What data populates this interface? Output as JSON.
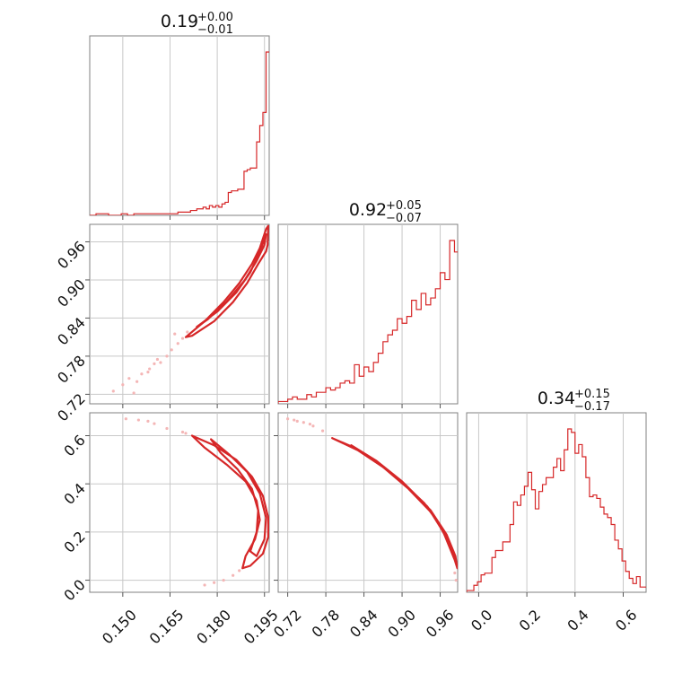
{
  "figure": {
    "type": "corner",
    "color": "#d62728",
    "scatter_color": "#f4b6b6",
    "grid": true
  },
  "titles": [
    {
      "value": "0.19",
      "plus": "+0.00",
      "minus": "−0.01"
    },
    {
      "value": "0.92",
      "plus": "+0.05",
      "minus": "−0.07"
    },
    {
      "value": "0.34",
      "plus": "+0.15",
      "minus": "−0.17"
    }
  ],
  "chart_data": {
    "type": "corner",
    "parameters": [
      {
        "index": 0,
        "range": [
          0.1395,
          0.1965
        ],
        "ticks": [
          0.15,
          0.165,
          0.18,
          0.195
        ],
        "tick_labels": [
          "0.150",
          "0.165",
          "0.180",
          "0.195"
        ],
        "histogram": {
          "edges": [
            0.1395,
            0.1415,
            0.1435,
            0.1455,
            0.1475,
            0.1495,
            0.1515,
            0.1535,
            0.1555,
            0.1575,
            0.1595,
            0.1615,
            0.1635,
            0.1655,
            0.1675,
            0.1695,
            0.1715,
            0.1735,
            0.1755,
            0.1765,
            0.1775,
            0.1785,
            0.1795,
            0.1805,
            0.1815,
            0.1825,
            0.1835,
            0.1845,
            0.1855,
            0.1865,
            0.1875,
            0.1885,
            0.1895,
            0.1905,
            0.1915,
            0.1925,
            0.1935,
            0.1945,
            0.1955,
            0.1965
          ],
          "counts": [
            0,
            1,
            1,
            0,
            0,
            1,
            0,
            1,
            1,
            1,
            1,
            1,
            1,
            1,
            2,
            2,
            3,
            4,
            5,
            4,
            6,
            5,
            6,
            5,
            7,
            8,
            14,
            15,
            15,
            16,
            16,
            27,
            28,
            29,
            29,
            45,
            55,
            63,
            100
          ]
        }
      },
      {
        "index": 1,
        "range": [
          0.705,
          0.9875
        ],
        "ticks": [
          0.72,
          0.78,
          0.84,
          0.9,
          0.96
        ],
        "tick_labels": [
          "0.72",
          "0.78",
          "0.84",
          "0.90",
          "0.96"
        ],
        "histogram": {
          "edges": [
            0.705,
            0.7125,
            0.72,
            0.7275,
            0.735,
            0.7425,
            0.75,
            0.7575,
            0.765,
            0.7725,
            0.78,
            0.7875,
            0.795,
            0.8025,
            0.81,
            0.8175,
            0.825,
            0.8325,
            0.84,
            0.8475,
            0.855,
            0.8625,
            0.87,
            0.8775,
            0.885,
            0.8925,
            0.9,
            0.9075,
            0.915,
            0.9225,
            0.93,
            0.9375,
            0.945,
            0.9525,
            0.96,
            0.9675,
            0.975,
            0.9825,
            0.9875
          ],
          "counts": [
            1,
            1,
            2,
            3,
            2,
            2,
            4,
            3,
            5,
            5,
            7,
            6,
            7,
            9,
            10,
            9,
            17,
            12,
            16,
            14,
            18,
            22,
            27,
            30,
            32,
            37,
            35,
            38,
            45,
            41,
            48,
            43,
            46,
            50,
            57,
            54,
            71,
            66
          ]
        }
      },
      {
        "index": 2,
        "range": [
          -0.05,
          0.695
        ],
        "ticks": [
          0.0,
          0.2,
          0.4,
          0.6
        ],
        "tick_labels": [
          "0.0",
          "0.2",
          "0.4",
          "0.6"
        ],
        "histogram": {
          "edges": [
            -0.05,
            -0.035,
            -0.02,
            -0.005,
            0.01,
            0.025,
            0.04,
            0.055,
            0.07,
            0.085,
            0.1,
            0.115,
            0.13,
            0.145,
            0.16,
            0.175,
            0.19,
            0.205,
            0.22,
            0.235,
            0.25,
            0.265,
            0.28,
            0.295,
            0.31,
            0.325,
            0.34,
            0.355,
            0.37,
            0.385,
            0.4,
            0.415,
            0.43,
            0.445,
            0.46,
            0.475,
            0.49,
            0.505,
            0.52,
            0.535,
            0.55,
            0.565,
            0.58,
            0.595,
            0.61,
            0.625,
            0.64,
            0.655,
            0.67,
            0.695
          ],
          "counts": [
            1,
            1,
            4,
            6,
            10,
            11,
            11,
            20,
            24,
            24,
            29,
            29,
            39,
            52,
            50,
            56,
            61,
            69,
            59,
            48,
            58,
            62,
            66,
            66,
            72,
            77,
            70,
            82,
            94,
            92,
            80,
            85,
            78,
            66,
            55,
            56,
            54,
            49,
            45,
            43,
            39,
            30,
            25,
            18,
            12,
            8,
            5,
            9,
            3
          ]
        }
      }
    ],
    "pairs": [
      {
        "x_param": 0,
        "y_param": 1,
        "contours": [
          [
            [
              0.17,
              0.81
            ],
            [
              0.176,
              0.835
            ],
            [
              0.182,
              0.865
            ],
            [
              0.187,
              0.895
            ],
            [
              0.191,
              0.925
            ],
            [
              0.1935,
              0.95
            ],
            [
              0.1945,
              0.965
            ],
            [
              0.1955,
              0.98
            ],
            [
              0.1962,
              0.985
            ],
            [
              0.196,
              0.955
            ],
            [
              0.1955,
              0.945
            ],
            [
              0.193,
              0.925
            ],
            [
              0.1895,
              0.895
            ],
            [
              0.185,
              0.865
            ],
            [
              0.179,
              0.835
            ],
            [
              0.172,
              0.812
            ],
            [
              0.17,
              0.81
            ]
          ],
          [
            [
              0.1735,
              0.826
            ],
            [
              0.18,
              0.85
            ],
            [
              0.186,
              0.88
            ],
            [
              0.1905,
              0.912
            ],
            [
              0.1935,
              0.945
            ],
            [
              0.1955,
              0.972
            ],
            [
              0.195,
              0.955
            ],
            [
              0.1925,
              0.93
            ],
            [
              0.1885,
              0.898
            ],
            [
              0.183,
              0.866
            ],
            [
              0.177,
              0.838
            ],
            [
              0.1735,
              0.826
            ]
          ]
        ],
        "scatter": [
          [
            0.152,
            0.745
          ],
          [
            0.1535,
            0.722
          ],
          [
            0.156,
            0.752
          ],
          [
            0.1585,
            0.76
          ],
          [
            0.16,
            0.768
          ],
          [
            0.162,
            0.77
          ],
          [
            0.164,
            0.78
          ],
          [
            0.1655,
            0.79
          ],
          [
            0.1675,
            0.8
          ],
          [
            0.169,
            0.808
          ],
          [
            0.147,
            0.725
          ],
          [
            0.15,
            0.735
          ],
          [
            0.1705,
            0.818
          ],
          [
            0.161,
            0.775
          ],
          [
            0.158,
            0.755
          ],
          [
            0.1665,
            0.815
          ],
          [
            0.1545,
            0.74
          ]
        ]
      },
      {
        "x_param": 0,
        "y_param": 2,
        "contours": [
          [
            [
              0.172,
              0.6
            ],
            [
              0.179,
              0.56
            ],
            [
              0.186,
              0.5
            ],
            [
              0.191,
              0.43
            ],
            [
              0.1945,
              0.35
            ],
            [
              0.1962,
              0.26
            ],
            [
              0.1962,
              0.18
            ],
            [
              0.1945,
              0.11
            ],
            [
              0.1905,
              0.06
            ],
            [
              0.188,
              0.05
            ],
            [
              0.189,
              0.1
            ],
            [
              0.192,
              0.17
            ],
            [
              0.1935,
              0.25
            ],
            [
              0.1925,
              0.33
            ],
            [
              0.189,
              0.41
            ],
            [
              0.183,
              0.48
            ],
            [
              0.176,
              0.55
            ],
            [
              0.172,
              0.6
            ]
          ],
          [
            [
              0.178,
              0.585
            ],
            [
              0.184,
              0.52
            ],
            [
              0.1895,
              0.45
            ],
            [
              0.1935,
              0.36
            ],
            [
              0.1955,
              0.26
            ],
            [
              0.195,
              0.17
            ],
            [
              0.1925,
              0.1
            ],
            [
              0.1905,
              0.12
            ],
            [
              0.1925,
              0.2
            ],
            [
              0.193,
              0.29
            ],
            [
              0.191,
              0.38
            ],
            [
              0.1865,
              0.46
            ],
            [
              0.181,
              0.53
            ],
            [
              0.178,
              0.585
            ]
          ]
        ],
        "scatter": [
          [
            0.151,
            0.67
          ],
          [
            0.155,
            0.665
          ],
          [
            0.16,
            0.65
          ],
          [
            0.164,
            0.63
          ],
          [
            0.169,
            0.615
          ],
          [
            0.182,
            0.0
          ],
          [
            0.179,
            -0.01
          ],
          [
            0.185,
            0.02
          ],
          [
            0.187,
            0.04
          ],
          [
            0.176,
            -0.02
          ],
          [
            0.158,
            0.66
          ],
          [
            0.17,
            0.61
          ]
        ]
      },
      {
        "x_param": 1,
        "y_param": 2,
        "contours": [
          [
            [
              0.79,
              0.59
            ],
            [
              0.83,
              0.54
            ],
            [
              0.87,
              0.47
            ],
            [
              0.91,
              0.38
            ],
            [
              0.95,
              0.27
            ],
            [
              0.975,
              0.15
            ],
            [
              0.987,
              0.05
            ],
            [
              0.984,
              0.1
            ],
            [
              0.97,
              0.19
            ],
            [
              0.945,
              0.29
            ],
            [
              0.905,
              0.395
            ],
            [
              0.865,
              0.48
            ],
            [
              0.825,
              0.55
            ],
            [
              0.79,
              0.59
            ]
          ],
          [
            [
              0.82,
              0.56
            ],
            [
              0.86,
              0.495
            ],
            [
              0.9,
              0.41
            ],
            [
              0.94,
              0.305
            ],
            [
              0.965,
              0.2
            ],
            [
              0.982,
              0.09
            ],
            [
              0.962,
              0.22
            ],
            [
              0.935,
              0.32
            ],
            [
              0.895,
              0.42
            ],
            [
              0.855,
              0.5
            ],
            [
              0.82,
              0.56
            ]
          ]
        ],
        "scatter": [
          [
            0.72,
            0.67
          ],
          [
            0.73,
            0.665
          ],
          [
            0.745,
            0.655
          ],
          [
            0.76,
            0.64
          ],
          [
            0.775,
            0.62
          ],
          [
            0.985,
            0.0
          ],
          [
            0.983,
            0.03
          ],
          [
            0.735,
            0.66
          ],
          [
            0.755,
            0.648
          ]
        ]
      }
    ]
  }
}
